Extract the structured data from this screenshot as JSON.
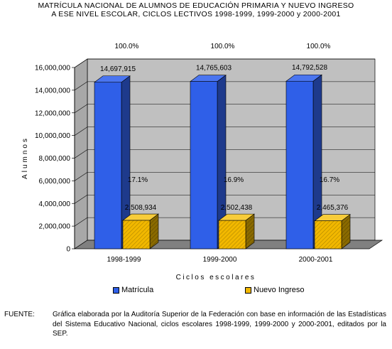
{
  "title_line1": "MATRÍCULA NACIONAL DE ALUMNOS DE EDUCACIÓN PRIMARIA Y NUEVO INGRESO",
  "title_line2": "A ESE NIVEL ESCOLAR, CICLOS LECTIVOS 1998-1999, 1999-2000 y 2000-2001",
  "source_label": "FUENTE:",
  "source_text": "Gráfica elaborada por la Auditoría Superior de la Federación con base en información de las Estadísticas del Sistema Educativo Nacional, ciclos escolares 1998-1999, 1999-2000 y 2000-2001, editados por la SEP.",
  "colors": {
    "matricula": "#2F5FE8",
    "matricula_side": "#1E3A8C",
    "nuevo": "#F2B800",
    "nuevo_side": "#8A6A00",
    "wall": "#C0C0C0",
    "floor": "#808080"
  },
  "chart_data": {
    "type": "bar",
    "categories": [
      "1998-1999",
      "1999-2000",
      "2000-2001"
    ],
    "series": [
      {
        "name": "Matrícula",
        "values": [
          14697915,
          14765603,
          14792528
        ],
        "value_labels": [
          "14,697,915",
          "14,765,603",
          "14,792,528"
        ],
        "pct_labels": [
          "100.0%",
          "100.0%",
          "100.0%"
        ]
      },
      {
        "name": "Nuevo Ingreso",
        "values": [
          2508934,
          2502438,
          2465376
        ],
        "value_labels": [
          "2,508,934",
          "2,502,438",
          "2,465,376"
        ],
        "pct_labels": [
          "17.1%",
          "16.9%",
          "16.7%"
        ]
      }
    ],
    "xlabel": "Ciclos escolares",
    "ylabel": "Alumnos",
    "ylim": [
      0,
      16000000
    ],
    "yticks": [
      0,
      2000000,
      4000000,
      6000000,
      8000000,
      10000000,
      12000000,
      14000000,
      16000000
    ],
    "ytick_labels": [
      "0",
      "2,000,000",
      "4,000,000",
      "6,000,000",
      "8,000,000",
      "10,000,000",
      "12,000,000",
      "14,000,000",
      "16,000,000"
    ],
    "grid": true,
    "legend": "bottom"
  }
}
